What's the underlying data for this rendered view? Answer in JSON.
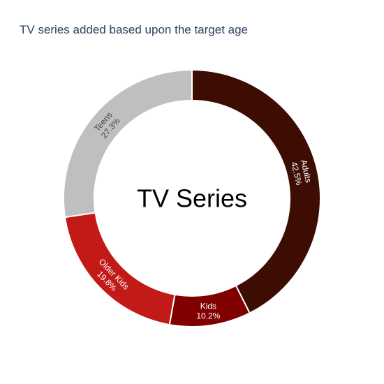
{
  "chart_data": {
    "type": "pie",
    "hole": true,
    "title": "TV series added based upon the target age",
    "center_text": "TV Series",
    "slices": [
      {
        "label": "Adults",
        "value": 42.5,
        "percent_label": "42.5%",
        "color": "#3d0c02",
        "text_color": "#ffffff"
      },
      {
        "label": "Kids",
        "value": 10.2,
        "percent_label": "10.2%",
        "color": "#800000",
        "text_color": "#ffffff"
      },
      {
        "label": "Older Kids",
        "value": 19.8,
        "percent_label": "19.8%",
        "color": "#c21a17",
        "text_color": "#ffffff"
      },
      {
        "label": "Teens",
        "value": 27.3,
        "percent_label": "27.3%",
        "color": "#bfbfbf",
        "text_color": "#444444"
      }
    ],
    "legend": false
  }
}
